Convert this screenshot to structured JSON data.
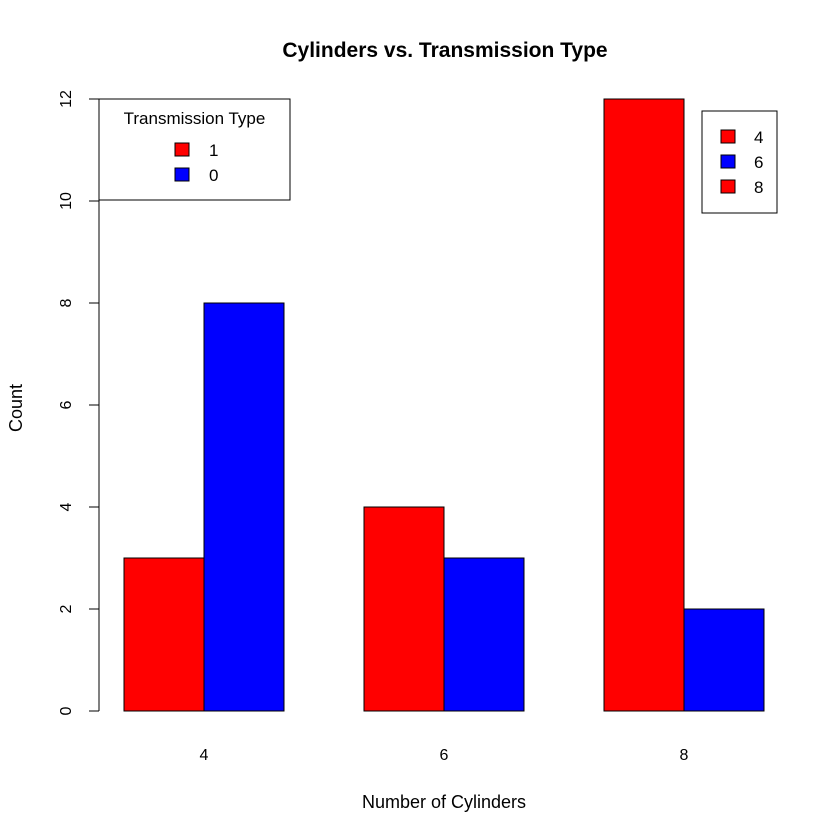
{
  "chart_data": {
    "type": "bar",
    "title": "Cylinders vs. Transmission Type",
    "xlabel": "Number of Cylinders",
    "ylabel": "Count",
    "categories": [
      "4",
      "6",
      "8"
    ],
    "series": [
      {
        "name": "1",
        "color": "#ff0000",
        "values": [
          3,
          4,
          12
        ]
      },
      {
        "name": "0",
        "color": "#0000ff",
        "values": [
          8,
          3,
          2
        ]
      }
    ],
    "ylim": [
      0,
      12
    ],
    "yticks": [
      0,
      2,
      4,
      6,
      8,
      10,
      12
    ],
    "grid": false,
    "legends": [
      {
        "position": "top-left",
        "title": "Transmission Type",
        "entries": [
          {
            "label": "1",
            "color": "#ff0000"
          },
          {
            "label": "0",
            "color": "#0000ff"
          }
        ]
      },
      {
        "position": "top-right",
        "title": "",
        "entries": [
          {
            "label": "4",
            "color": "#ff0000"
          },
          {
            "label": "6",
            "color": "#0000ff"
          },
          {
            "label": "8",
            "color": "#ff0000"
          }
        ]
      }
    ]
  }
}
